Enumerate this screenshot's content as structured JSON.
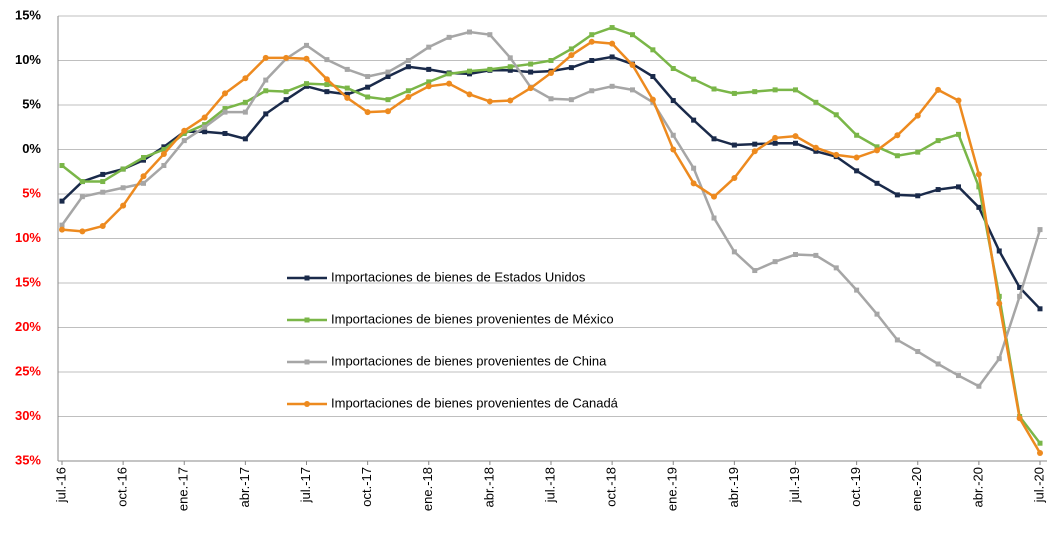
{
  "chart_data": {
    "type": "line",
    "categories": [
      "jul.-16",
      null,
      null,
      "oct.-16",
      null,
      null,
      "ene.-17",
      null,
      null,
      "abr.-17",
      null,
      null,
      "jul.-17",
      null,
      null,
      "oct.-17",
      null,
      null,
      "ene.-18",
      null,
      null,
      "abr.-18",
      null,
      null,
      "jul.-18",
      null,
      null,
      "oct.-18",
      null,
      null,
      "ene.-19",
      null,
      null,
      "abr.-19",
      null,
      null,
      "jul.-19",
      null,
      null,
      "oct.-19",
      null,
      null,
      "ene.-20",
      null,
      null,
      "abr.-20",
      null,
      null,
      "jul.-20"
    ],
    "series": [
      {
        "name": "Importaciones de bienes de Estados Unidos",
        "color": "#1a2a4a",
        "marker": "square",
        "values": [
          -5.8,
          -3.6,
          -2.8,
          -2.2,
          -1.2,
          0.3,
          2.0,
          2.0,
          1.8,
          1.2,
          4.0,
          5.6,
          7.1,
          6.5,
          6.2,
          7.0,
          8.2,
          9.3,
          9.0,
          8.6,
          8.5,
          8.9,
          8.9,
          8.7,
          8.8,
          9.2,
          10.0,
          10.4,
          9.6,
          8.2,
          5.5,
          3.3,
          1.2,
          0.5,
          0.6,
          0.7,
          0.7,
          -0.2,
          -0.8,
          -2.4,
          -3.8,
          -5.1,
          -5.2,
          -4.5,
          -4.2,
          -6.5,
          -11.4,
          -15.5,
          -17.9
        ]
      },
      {
        "name": "Importaciones de bienes provenientes de México",
        "color": "#7ab648",
        "marker": "square",
        "values": [
          -1.8,
          -3.6,
          -3.6,
          -2.2,
          -0.9,
          0.0,
          1.8,
          2.8,
          4.6,
          5.3,
          6.6,
          6.5,
          7.4,
          7.3,
          6.9,
          5.9,
          5.6,
          6.6,
          7.6,
          8.5,
          8.8,
          9.0,
          9.3,
          9.6,
          10.0,
          11.3,
          12.9,
          13.7,
          12.9,
          11.2,
          9.1,
          7.9,
          6.8,
          6.3,
          6.5,
          6.7,
          6.7,
          5.3,
          3.9,
          1.6,
          0.3,
          -0.7,
          -0.3,
          1.0,
          1.7,
          -4.2,
          -16.5,
          -30.0,
          -33.0
        ]
      },
      {
        "name": "Importaciones de bienes provenientes de China",
        "color": "#a6a6a6",
        "marker": "square",
        "values": [
          -8.5,
          -5.3,
          -4.8,
          -4.3,
          -3.8,
          -1.8,
          1.0,
          2.5,
          4.2,
          4.2,
          7.8,
          10.2,
          11.7,
          10.1,
          9.0,
          8.2,
          8.7,
          10.0,
          11.5,
          12.6,
          13.2,
          12.9,
          10.3,
          7.0,
          5.7,
          5.6,
          6.6,
          7.1,
          6.7,
          5.3,
          1.6,
          -2.1,
          -7.7,
          -11.5,
          -13.6,
          -12.6,
          -11.8,
          -11.9,
          -13.3,
          -15.8,
          -18.5,
          -21.4,
          -22.7,
          -24.1,
          -25.4,
          -26.6,
          -23.5,
          -16.5,
          -9.0
        ]
      },
      {
        "name": "Importaciones de bienes provenientes de Canadá",
        "color": "#ed8a1f",
        "marker": "circle",
        "values": [
          -9.0,
          -9.2,
          -8.6,
          -6.3,
          -3.0,
          -0.5,
          2.1,
          3.6,
          6.3,
          8.0,
          10.3,
          10.3,
          10.2,
          7.9,
          5.8,
          4.2,
          4.3,
          5.9,
          7.1,
          7.4,
          6.2,
          5.4,
          5.5,
          6.9,
          8.6,
          10.6,
          12.1,
          11.9,
          9.5,
          5.6,
          0.0,
          -3.8,
          -5.3,
          -3.2,
          -0.2,
          1.3,
          1.5,
          0.2,
          -0.6,
          -0.9,
          -0.1,
          1.6,
          3.8,
          6.7,
          5.5,
          -2.8,
          -17.3,
          -30.2,
          -34.1
        ]
      }
    ],
    "ylim": [
      -35,
      15
    ],
    "yticks": [
      {
        "value": 15,
        "label": "15%"
      },
      {
        "value": 10,
        "label": "10%"
      },
      {
        "value": 5,
        "label": "5%"
      },
      {
        "value": 0,
        "label": "0%"
      },
      {
        "value": -5,
        "label": "5%"
      },
      {
        "value": -10,
        "label": "10%"
      },
      {
        "value": -15,
        "label": "15%"
      },
      {
        "value": -20,
        "label": "20%"
      },
      {
        "value": -25,
        "label": "25%"
      },
      {
        "value": -30,
        "label": "30%"
      },
      {
        "value": -35,
        "label": "35%"
      }
    ],
    "negative_tick_color": "#ff0000",
    "grid": true,
    "legend": "center-left"
  }
}
